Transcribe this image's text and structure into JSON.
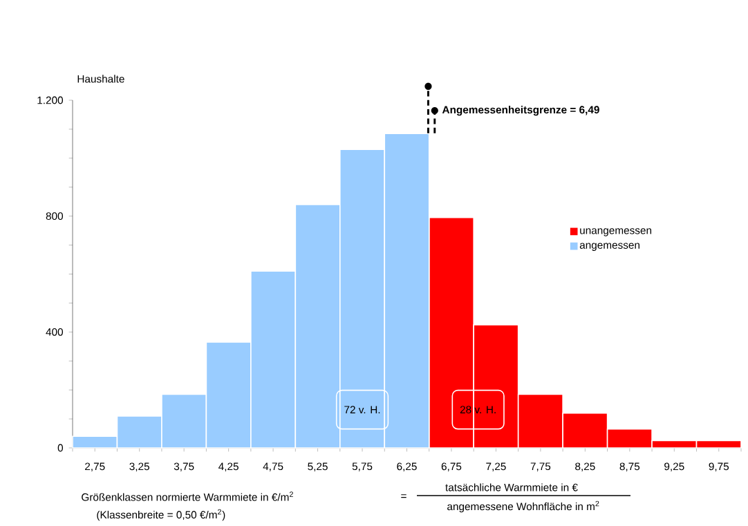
{
  "chart_data": {
    "type": "histogram",
    "bins": [
      2.5,
      3.0,
      3.5,
      4.0,
      4.5,
      5.0,
      5.5,
      6.0,
      6.5,
      7.0,
      7.5,
      8.0,
      8.5,
      9.0,
      9.5,
      10.0
    ],
    "series": [
      {
        "name": "unangemessen",
        "color": "#ff0000",
        "values": [
          null,
          null,
          null,
          null,
          null,
          null,
          null,
          null,
          795,
          425,
          185,
          120,
          65,
          25,
          25
        ]
      },
      {
        "name": "angemessen",
        "color": "#99ccff",
        "values": [
          40,
          110,
          185,
          365,
          610,
          840,
          1030,
          1085,
          null,
          null,
          null,
          null,
          null,
          null,
          null
        ]
      }
    ],
    "xlim": [
      2.5,
      10.0
    ],
    "xticks": [
      {
        "value": 2.75,
        "label": "2,75"
      },
      {
        "value": 3.25,
        "label": "3,25"
      },
      {
        "value": 3.75,
        "label": "3,75"
      },
      {
        "value": 4.25,
        "label": "4,25"
      },
      {
        "value": 4.75,
        "label": "4,75"
      },
      {
        "value": 5.25,
        "label": "5,25"
      },
      {
        "value": 5.75,
        "label": "5,75"
      },
      {
        "value": 6.25,
        "label": "6,25"
      },
      {
        "value": 6.75,
        "label": "6,75"
      },
      {
        "value": 7.25,
        "label": "7,25"
      },
      {
        "value": 7.75,
        "label": "7,75"
      },
      {
        "value": 8.25,
        "label": "8,25"
      },
      {
        "value": 8.75,
        "label": "8,75"
      },
      {
        "value": 9.25,
        "label": "9,25"
      },
      {
        "value": 9.75,
        "label": "9,75"
      }
    ],
    "ylim": [
      0,
      1200
    ],
    "yticks": [
      0,
      {
        "value": 100,
        "label": null
      },
      {
        "value": 200,
        "label": null
      },
      {
        "value": 300,
        "label": null
      },
      400,
      {
        "value": 500,
        "label": null
      },
      {
        "value": 600,
        "label": null
      },
      {
        "value": 700,
        "label": null
      },
      800,
      {
        "value": 900,
        "label": null
      },
      {
        "value": 1000,
        "label": null
      },
      {
        "value": 1100,
        "label": null
      },
      {
        "value": 1200,
        "label": "1.200"
      }
    ],
    "xlabel": "Größenklassen normierte Warmmiete in €/m$^{2}$",
    "ylabel": "Haushalte",
    "legend": "right",
    "ref_lines": [
      {
        "axis": "x",
        "value": 6.49,
        "label": "Angemessenheitsgrenze = 6,49",
        "line_style": "dashed",
        "color": "#000000"
      }
    ],
    "annotations": [
      "72 v. H.",
      "28 v. H.",
      "(Klassenbreite = 0,50 €/m$^{2}$)",
      "=",
      "tatsächliche Warmmiete in €",
      "angemessene Wohnfläche in m$^{2}$"
    ]
  }
}
